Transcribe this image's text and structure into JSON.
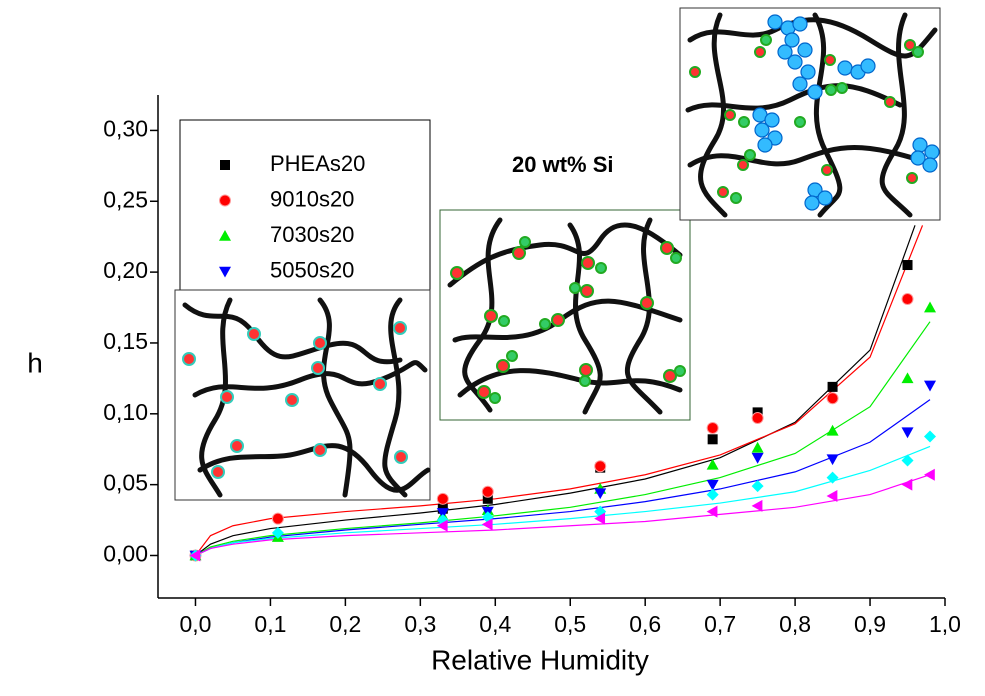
{
  "chart_data": {
    "type": "scatter",
    "xlabel": "Relative Humidity",
    "ylabel": "h",
    "annotation": "20 wt% Si",
    "xlim": [
      -0.05,
      1.0
    ],
    "ylim": [
      -0.03,
      0.325
    ],
    "xticks": [
      {
        "value": 0,
        "label": "0,0"
      },
      {
        "value": 0.1,
        "label": "0,1"
      },
      {
        "value": 0.2,
        "label": "0,2"
      },
      {
        "value": 0.3,
        "label": "0,3"
      },
      {
        "value": 0.4,
        "label": "0,4"
      },
      {
        "value": 0.5,
        "label": "0,5"
      },
      {
        "value": 0.6,
        "label": "0,6"
      },
      {
        "value": 0.7,
        "label": "0,7"
      },
      {
        "value": 0.8,
        "label": "0,8"
      },
      {
        "value": 0.9,
        "label": "0,9"
      },
      {
        "value": 1.0,
        "label": "1,0"
      }
    ],
    "yticks": [
      {
        "value": 0,
        "label": "0,00"
      },
      {
        "value": 0.05,
        "label": "0,05"
      },
      {
        "value": 0.1,
        "label": "0,10"
      },
      {
        "value": 0.15,
        "label": "0,15"
      },
      {
        "value": 0.2,
        "label": "0,20"
      },
      {
        "value": 0.25,
        "label": "0,25"
      },
      {
        "value": 0.3,
        "label": "0,30"
      }
    ],
    "legend": "upper-left",
    "series": [
      {
        "name": "PHEAs20",
        "color": "#000000",
        "marker": "square",
        "x": [
          0,
          0.33,
          0.39,
          0.54,
          0.69,
          0.75,
          0.85,
          0.95
        ],
        "values": [
          0,
          0.033,
          0.04,
          0.062,
          0.082,
          0.101,
          0.119,
          0.205
        ],
        "fit": {
          "x": [
            0,
            0.02,
            0.05,
            0.1,
            0.2,
            0.3,
            0.4,
            0.5,
            0.6,
            0.7,
            0.8,
            0.9,
            0.96
          ],
          "values": [
            0,
            0.008,
            0.014,
            0.019,
            0.025,
            0.03,
            0.036,
            0.044,
            0.054,
            0.069,
            0.094,
            0.145,
            0.233
          ]
        }
      },
      {
        "name": "9010s20",
        "color": "#ff0000",
        "marker": "circle",
        "x": [
          0,
          0.11,
          0.33,
          0.39,
          0.54,
          0.69,
          0.75,
          0.85,
          0.95
        ],
        "values": [
          0,
          0.026,
          0.04,
          0.045,
          0.063,
          0.09,
          0.097,
          0.111,
          0.181
        ],
        "fit": {
          "x": [
            0,
            0.02,
            0.05,
            0.1,
            0.2,
            0.3,
            0.4,
            0.5,
            0.6,
            0.7,
            0.8,
            0.9,
            0.97
          ],
          "values": [
            0,
            0.014,
            0.021,
            0.026,
            0.031,
            0.035,
            0.04,
            0.047,
            0.057,
            0.071,
            0.093,
            0.14,
            0.233
          ]
        }
      },
      {
        "name": "7030s20",
        "color": "#00ee00",
        "marker": "triangle-up",
        "x": [
          0,
          0.11,
          0.33,
          0.39,
          0.54,
          0.69,
          0.75,
          0.85,
          0.95,
          0.98
        ],
        "values": [
          0,
          0.013,
          0.028,
          0.032,
          0.047,
          0.064,
          0.076,
          0.088,
          0.125,
          0.175
        ],
        "fit": {
          "x": [
            0,
            0.02,
            0.05,
            0.1,
            0.2,
            0.3,
            0.4,
            0.5,
            0.6,
            0.7,
            0.8,
            0.9,
            0.98
          ],
          "values": [
            0,
            0.006,
            0.01,
            0.014,
            0.019,
            0.023,
            0.028,
            0.034,
            0.043,
            0.055,
            0.072,
            0.105,
            0.165
          ]
        }
      },
      {
        "name": "5050s20",
        "color": "#0000ff",
        "marker": "triangle-down",
        "x": [
          0,
          0.33,
          0.39,
          0.54,
          0.69,
          0.75,
          0.85,
          0.95,
          0.98
        ],
        "values": [
          0,
          0.03,
          0.031,
          0.044,
          0.05,
          0.069,
          0.068,
          0.087,
          0.12
        ],
        "fit": {
          "x": [
            0,
            0.02,
            0.05,
            0.1,
            0.2,
            0.3,
            0.4,
            0.5,
            0.6,
            0.7,
            0.8,
            0.9,
            0.98
          ],
          "values": [
            0,
            0.005,
            0.009,
            0.013,
            0.018,
            0.022,
            0.026,
            0.031,
            0.038,
            0.047,
            0.059,
            0.08,
            0.11
          ]
        }
      },
      {
        "color": "#00ffff",
        "marker": "diamond",
        "x": [
          0,
          0.11,
          0.33,
          0.39,
          0.54,
          0.69,
          0.75,
          0.85,
          0.95,
          0.98
        ],
        "values": [
          0,
          0.016,
          0.025,
          0.027,
          0.031,
          0.043,
          0.049,
          0.055,
          0.067,
          0.084
        ],
        "fit": {
          "x": [
            0,
            0.02,
            0.05,
            0.1,
            0.2,
            0.3,
            0.4,
            0.5,
            0.6,
            0.7,
            0.8,
            0.9,
            0.98
          ],
          "values": [
            0,
            0.005,
            0.009,
            0.012,
            0.016,
            0.019,
            0.022,
            0.026,
            0.031,
            0.037,
            0.045,
            0.06,
            0.077
          ]
        }
      },
      {
        "color": "#ff00ff",
        "marker": "triangle-left",
        "x": [
          0,
          0.33,
          0.39,
          0.54,
          0.69,
          0.75,
          0.85,
          0.95,
          0.98
        ],
        "values": [
          0,
          0.021,
          0.022,
          0.026,
          0.031,
          0.035,
          0.042,
          0.05,
          0.057
        ],
        "fit": {
          "x": [
            0,
            0.02,
            0.05,
            0.1,
            0.2,
            0.3,
            0.4,
            0.5,
            0.6,
            0.7,
            0.8,
            0.9,
            0.98
          ],
          "values": [
            0,
            0.005,
            0.008,
            0.011,
            0.014,
            0.016,
            0.018,
            0.021,
            0.024,
            0.029,
            0.034,
            0.043,
            0.057
          ]
        }
      }
    ]
  }
}
